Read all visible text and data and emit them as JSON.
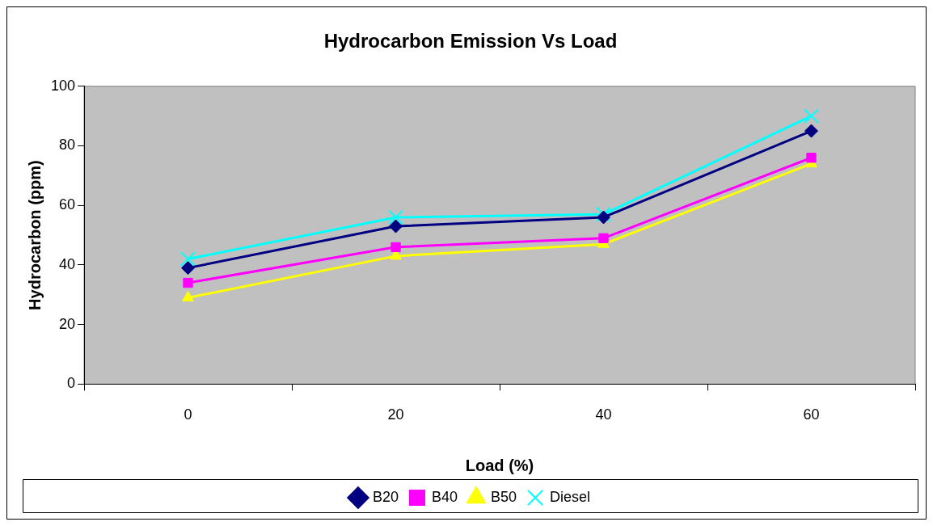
{
  "chart_data": {
    "type": "line",
    "title": "Hydrocarbon Emission Vs Load",
    "xlabel": "Load (%)",
    "ylabel": "Hydrocarbon (ppm)",
    "categories": [
      "0",
      "20",
      "40",
      "60"
    ],
    "series": [
      {
        "name": "B20",
        "color": "#000080",
        "marker": "diamond",
        "values": [
          39,
          53,
          56,
          85
        ]
      },
      {
        "name": "B40",
        "color": "#ff00ff",
        "marker": "square",
        "values": [
          34,
          46,
          49,
          76
        ]
      },
      {
        "name": "B50",
        "color": "#ffff00",
        "marker": "triangle",
        "values": [
          29,
          43,
          47,
          74
        ]
      },
      {
        "name": "Diesel",
        "color": "#00ffff",
        "marker": "cross",
        "values": [
          42,
          56,
          57,
          90
        ]
      }
    ],
    "ylim": [
      0,
      100
    ],
    "yticks": [
      0,
      20,
      40,
      60,
      80,
      100
    ],
    "grid": false,
    "legend": "bottom",
    "line_style": "solid"
  }
}
